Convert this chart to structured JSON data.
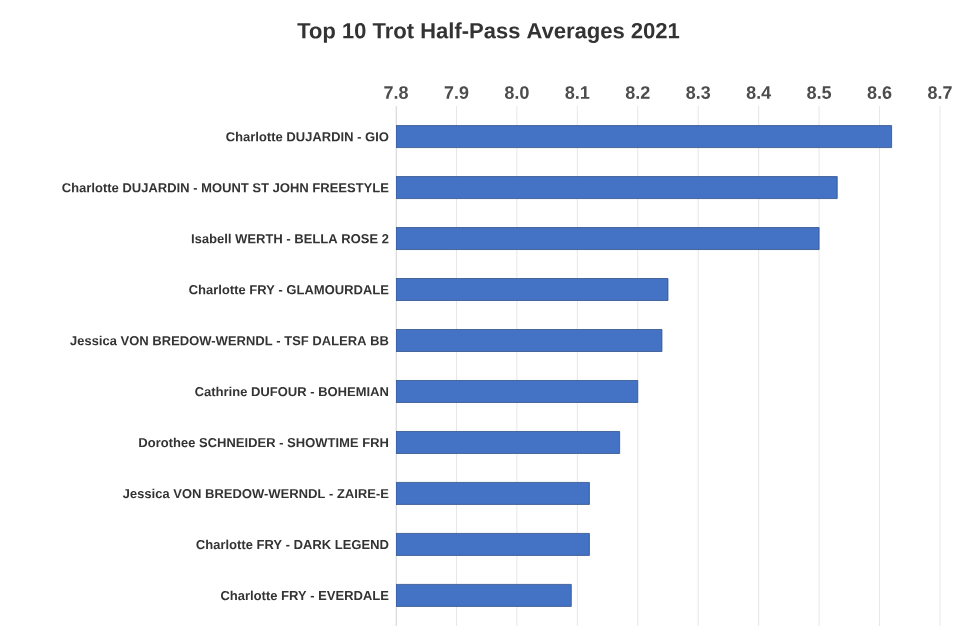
{
  "chart_data": {
    "type": "bar",
    "orientation": "horizontal",
    "title": "Top 10 Trot Half-Pass Averages 2021",
    "categories": [
      "Charlotte DUJARDIN - GIO",
      "Charlotte DUJARDIN - MOUNT ST JOHN FREESTYLE",
      "Isabell WERTH - BELLA ROSE 2",
      "Charlotte FRY - GLAMOURDALE",
      "Jessica VON BREDOW-WERNDL - TSF DALERA BB",
      "Cathrine DUFOUR - BOHEMIAN",
      "Dorothee SCHNEIDER - SHOWTIME FRH",
      "Jessica VON BREDOW-WERNDL - ZAIRE-E",
      "Charlotte FRY - DARK LEGEND",
      "Charlotte FRY - EVERDALE"
    ],
    "values": [
      8.62,
      8.53,
      8.5,
      8.25,
      8.24,
      8.2,
      8.17,
      8.12,
      8.12,
      8.09
    ],
    "color": "#4472c4",
    "xlim": [
      7.8,
      8.7
    ],
    "xticks": [
      {
        "value": 7.8,
        "label": "7.8"
      },
      {
        "value": 7.9,
        "label": "7.9"
      },
      {
        "value": 8.0,
        "label": "8.0"
      },
      {
        "value": 8.1,
        "label": "8.1"
      },
      {
        "value": 8.2,
        "label": "8.2"
      },
      {
        "value": 8.3,
        "label": "8.3"
      },
      {
        "value": 8.4,
        "label": "8.4"
      },
      {
        "value": 8.5,
        "label": "8.5"
      },
      {
        "value": 8.6,
        "label": "8.6"
      },
      {
        "value": 8.7,
        "label": "8.7"
      }
    ],
    "grid": "x"
  }
}
